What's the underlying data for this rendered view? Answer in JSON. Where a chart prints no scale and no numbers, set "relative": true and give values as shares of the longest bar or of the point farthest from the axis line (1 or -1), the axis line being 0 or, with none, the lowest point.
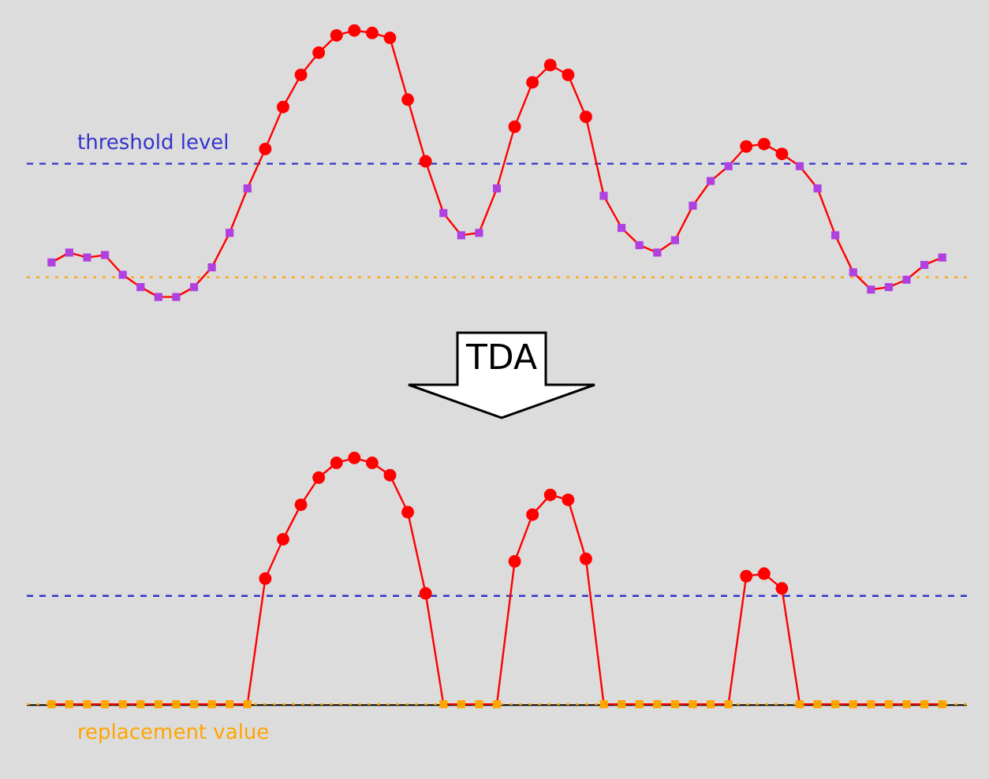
{
  "chart_data": [
    {
      "type": "line",
      "relative": true,
      "categories": [
        null,
        null,
        null,
        null,
        null,
        null,
        null,
        null,
        null,
        null,
        null,
        null,
        null,
        null,
        null,
        null,
        null,
        null,
        null,
        null,
        null,
        null,
        null,
        null,
        null,
        null,
        null,
        null,
        null,
        null,
        null,
        null,
        null,
        null,
        null,
        null,
        null,
        null,
        null,
        null,
        null,
        null,
        null,
        null,
        null,
        null,
        null,
        null,
        null,
        null,
        null
      ],
      "series": [
        {
          "color": "#ff0000",
          "marker": "square",
          "values": [
            0.06,
            0.1,
            0.08,
            0.09,
            0.01,
            -0.04,
            -0.08,
            -0.08,
            -0.04,
            0.04,
            0.18,
            0.36,
            0.52,
            0.69,
            0.82,
            0.91,
            0.98,
            1,
            0.99,
            0.97,
            0.72,
            0.47,
            0.26,
            0.17,
            0.18,
            0.36,
            0.61,
            0.79,
            0.86,
            0.82,
            0.65,
            0.33,
            0.2,
            0.13,
            0.1,
            0.15,
            0.29,
            0.39,
            0.45,
            0.53,
            0.54,
            0.5,
            0.45,
            0.36,
            0.17,
            0.02,
            -0.05,
            -0.04,
            -0.01,
            0.05,
            0.08
          ],
          "colors": [
            "#b040e0",
            "#b040e0",
            "#b040e0",
            "#b040e0",
            "#b040e0",
            "#b040e0",
            "#b040e0",
            "#b040e0",
            "#b040e0",
            "#b040e0",
            "#b040e0",
            "#b040e0",
            "#ff0000",
            "#ff0000",
            "#ff0000",
            "#ff0000",
            "#ff0000",
            "#ff0000",
            "#ff0000",
            "#ff0000",
            "#ff0000",
            "#ff0000",
            "#b040e0",
            "#b040e0",
            "#b040e0",
            "#b040e0",
            "#ff0000",
            "#ff0000",
            "#ff0000",
            "#ff0000",
            "#ff0000",
            "#b040e0",
            "#b040e0",
            "#b040e0",
            "#b040e0",
            "#b040e0",
            "#b040e0",
            "#b040e0",
            "#b040e0",
            "#ff0000",
            "#ff0000",
            "#ff0000",
            "#b040e0",
            "#b040e0",
            "#b040e0",
            "#b040e0",
            "#b040e0",
            "#b040e0",
            "#b040e0",
            "#b040e0",
            "#b040e0"
          ]
        }
      ],
      "ref_lines": [
        {
          "axis": "y",
          "value": 0.46,
          "label": "threshold level",
          "color": "#3333cc",
          "line_style": "dashed"
        },
        {
          "axis": "y",
          "value": 0,
          "color": "#ffa500",
          "line_style": "dotted"
        }
      ],
      "legend": false
    },
    {
      "type": "line",
      "relative": true,
      "categories": [
        null,
        null,
        null,
        null,
        null,
        null,
        null,
        null,
        null,
        null,
        null,
        null,
        null,
        null,
        null,
        null,
        null,
        null,
        null,
        null,
        null,
        null,
        null,
        null,
        null,
        null,
        null,
        null,
        null,
        null,
        null,
        null,
        null,
        null,
        null,
        null,
        null,
        null,
        null,
        null,
        null,
        null,
        null,
        null,
        null,
        null,
        null,
        null,
        null,
        null,
        null
      ],
      "series": [
        {
          "color": "#ff0000",
          "marker": "square",
          "values": [
            0,
            0,
            0,
            0,
            0,
            0,
            0,
            0,
            0,
            0,
            0,
            0,
            0.51,
            0.67,
            0.81,
            0.92,
            0.98,
            1,
            0.98,
            0.93,
            0.78,
            0.45,
            0,
            0,
            0,
            0,
            0.58,
            0.77,
            0.85,
            0.83,
            0.59,
            0,
            0,
            0,
            0,
            0,
            0,
            0,
            0,
            0.52,
            0.53,
            0.47,
            0,
            0,
            0,
            0,
            0,
            0,
            0,
            0,
            0
          ],
          "colors": [
            "#ffa500",
            "#ffa500",
            "#ffa500",
            "#ffa500",
            "#ffa500",
            "#ffa500",
            "#ffa500",
            "#ffa500",
            "#ffa500",
            "#ffa500",
            "#ffa500",
            "#ffa500",
            "#ff0000",
            "#ff0000",
            "#ff0000",
            "#ff0000",
            "#ff0000",
            "#ff0000",
            "#ff0000",
            "#ff0000",
            "#ff0000",
            "#ff0000",
            "#ffa500",
            "#ffa500",
            "#ffa500",
            "#ffa500",
            "#ff0000",
            "#ff0000",
            "#ff0000",
            "#ff0000",
            "#ff0000",
            "#ffa500",
            "#ffa500",
            "#ffa500",
            "#ffa500",
            "#ffa500",
            "#ffa500",
            "#ffa500",
            "#ffa500",
            "#ff0000",
            "#ff0000",
            "#ff0000",
            "#ffa500",
            "#ffa500",
            "#ffa500",
            "#ffa500",
            "#ffa500",
            "#ffa500",
            "#ffa500",
            "#ffa500",
            "#ffa500"
          ]
        }
      ],
      "ref_lines": [
        {
          "axis": "y",
          "value": 0.44,
          "color": "#3333cc",
          "line_style": "dashed"
        },
        {
          "axis": "y",
          "value": 0,
          "label": "replacement value",
          "color": "#ffa500",
          "line_style": "dotted"
        }
      ],
      "annotations": [
        "TDA"
      ],
      "legend": false
    }
  ]
}
